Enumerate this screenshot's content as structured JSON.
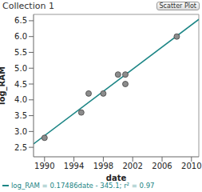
{
  "chart_data": {
    "type": "scatter",
    "title": "Collection 1",
    "annotation": "Scatter Plot",
    "x_label": "date",
    "y_label": "log_RAM",
    "x": [
      1990,
      1995,
      1996,
      1998,
      2000,
      2001,
      2001,
      2008
    ],
    "values": [
      2.8,
      3.6,
      4.2,
      4.2,
      4.8,
      4.5,
      4.8,
      6.0
    ],
    "color": "#8c8c8c",
    "marker": "circle",
    "xlim": [
      1988.5,
      2011
    ],
    "xticks": [
      1990,
      1994,
      1998,
      2002,
      2006,
      2010
    ],
    "ylim": [
      2.2,
      6.7
    ],
    "yticks": [
      2.5,
      {
        "value": 3,
        "label": "3.0"
      },
      3.5,
      {
        "value": 4,
        "label": "4.0"
      },
      4.5,
      {
        "value": 5,
        "label": "5.0"
      },
      5.5,
      {
        "value": 6,
        "label": "6.0"
      },
      6.5
    ],
    "grid": false,
    "fit": {
      "label": "log_RAM = 0.17486date - 345.1; r² = 0.97",
      "slope": 0.17486,
      "intercept": -345.1,
      "color": "#1b8585"
    }
  }
}
